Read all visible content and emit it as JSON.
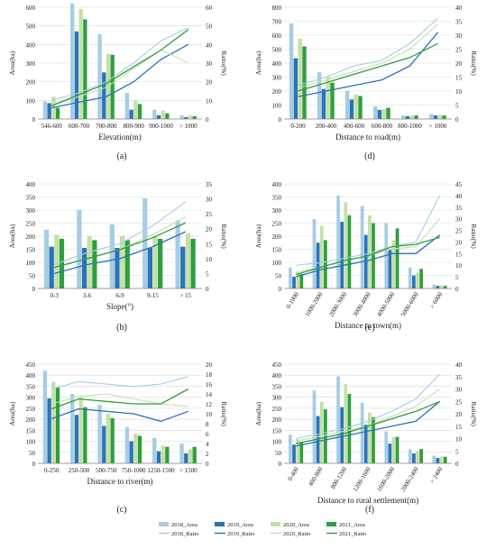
{
  "colors": {
    "area_2018": "#a6cde4",
    "area_2019": "#2a73b8",
    "area_2020": "#c5e0a8",
    "area_2021": "#2f9e3f",
    "ratio_2018": "#a6cde4",
    "ratio_2019": "#2a73b8",
    "ratio_2020": "#c5e0a8",
    "ratio_2021": "#2f9e3f",
    "grid": "#d9d9d9",
    "axis": "#888888"
  },
  "legend": {
    "items": [
      {
        "label": "2018_Area",
        "kind": "bar",
        "color": "#a6cde4"
      },
      {
        "label": "2019_Area",
        "kind": "bar",
        "color": "#2a73b8"
      },
      {
        "label": "2020_Area",
        "kind": "bar",
        "color": "#c5e0a8"
      },
      {
        "label": "2021_Area",
        "kind": "bar",
        "color": "#2f9e3f"
      },
      {
        "label": "2018_Ratio",
        "kind": "line",
        "color": "#a6cde4"
      },
      {
        "label": "2019_Ratio",
        "kind": "line",
        "color": "#2a73b8"
      },
      {
        "label": "2020_Ratio",
        "kind": "line",
        "color": "#c5e0a8"
      },
      {
        "label": "2021_Ratio",
        "kind": "line",
        "color": "#2f9e3f"
      }
    ]
  },
  "chart_data": [
    {
      "panel_label": "(a)",
      "type": "bar",
      "xlabel": "Elevation(m)",
      "ylabel": "Area(ha)",
      "y2label": "Ratio(%)",
      "ylim": [
        0,
        600
      ],
      "yticks": [
        0,
        100,
        200,
        300,
        400,
        500,
        600
      ],
      "y2lim": [
        0,
        60
      ],
      "y2ticks": [
        0,
        10,
        20,
        30,
        40,
        50,
        60
      ],
      "rotate_xlabels": false,
      "categories": [
        "546-600",
        "600-700",
        "700-800",
        "800-900",
        "900-1000",
        "> 1000"
      ],
      "series": [
        {
          "name": "2018_Area",
          "values": [
            95,
            620,
            455,
            140,
            50,
            20
          ]
        },
        {
          "name": "2019_Area",
          "values": [
            85,
            470,
            250,
            50,
            20,
            10
          ]
        },
        {
          "name": "2020_Area",
          "values": [
            120,
            590,
            350,
            100,
            45,
            20
          ]
        },
        {
          "name": "2021_Area",
          "values": [
            60,
            535,
            345,
            80,
            30,
            15
          ]
        }
      ],
      "lines": [
        {
          "name": "2018_Ratio",
          "values": [
            10,
            14,
            20,
            30,
            42,
            49
          ]
        },
        {
          "name": "2019_Ratio",
          "values": [
            6,
            9,
            12,
            20,
            32,
            40
          ]
        },
        {
          "name": "2020_Ratio",
          "values": [
            8,
            12,
            17,
            27,
            37,
            30
          ]
        },
        {
          "name": "2021_Ratio",
          "values": [
            7,
            13,
            19,
            28,
            37,
            48
          ]
        }
      ]
    },
    {
      "panel_label": "(d)",
      "type": "bar",
      "xlabel": "Distance to road(m)",
      "ylabel": "Area(ha)",
      "y2label": "Ratio(%)",
      "ylim": [
        0,
        800
      ],
      "yticks": [
        0,
        100,
        200,
        300,
        400,
        500,
        600,
        700,
        800
      ],
      "y2lim": [
        0,
        40
      ],
      "y2ticks": [
        0,
        5,
        10,
        15,
        20,
        25,
        30,
        35,
        40
      ],
      "rotate_xlabels": false,
      "categories": [
        "0-200",
        "200-400",
        "400-600",
        "600-800",
        "800-1000",
        "> 1000"
      ],
      "series": [
        {
          "name": "2018_Area",
          "values": [
            685,
            335,
            200,
            90,
            25,
            35
          ]
        },
        {
          "name": "2019_Area",
          "values": [
            435,
            215,
            140,
            65,
            20,
            25
          ]
        },
        {
          "name": "2020_Area",
          "values": [
            575,
            300,
            175,
            70,
            25,
            30
          ]
        },
        {
          "name": "2021_Area",
          "values": [
            520,
            260,
            165,
            80,
            25,
            25
          ]
        }
      ],
      "lines": [
        {
          "name": "2018_Ratio",
          "values": [
            12,
            15,
            19,
            21,
            27,
            36
          ]
        },
        {
          "name": "2019_Ratio",
          "values": [
            8,
            10,
            12,
            14,
            19,
            31
          ]
        },
        {
          "name": "2020_Ratio",
          "values": [
            11,
            14,
            17,
            20,
            25,
            34
          ]
        },
        {
          "name": "2021_Ratio",
          "values": [
            10,
            13,
            16,
            19,
            22,
            27
          ]
        }
      ]
    },
    {
      "panel_label": "(b)",
      "type": "bar",
      "xlabel": "Slope(°)",
      "ylabel": "Area(ha)",
      "y2label": "Ratio(%)",
      "ylim": [
        0,
        400
      ],
      "yticks": [
        0,
        50,
        100,
        150,
        200,
        250,
        300,
        350,
        400
      ],
      "y2lim": [
        0,
        35
      ],
      "y2ticks": [
        0,
        5,
        10,
        15,
        20,
        25,
        30,
        35
      ],
      "rotate_xlabels": false,
      "categories": [
        "0-3",
        "3-6",
        "6-9",
        "9-15",
        "> 15"
      ],
      "series": [
        {
          "name": "2018_Area",
          "values": [
            225,
            300,
            245,
            345,
            260
          ]
        },
        {
          "name": "2019_Area",
          "values": [
            160,
            155,
            155,
            155,
            160
          ]
        },
        {
          "name": "2020_Area",
          "values": [
            205,
            200,
            200,
            200,
            210
          ]
        },
        {
          "name": "2021_Area",
          "values": [
            190,
            185,
            185,
            190,
            190
          ]
        }
      ],
      "lines": [
        {
          "name": "2018_Ratio",
          "values": [
            8,
            12,
            15,
            21,
            29
          ]
        },
        {
          "name": "2019_Ratio",
          "values": [
            5,
            8,
            10,
            14,
            19
          ]
        },
        {
          "name": "2020_Ratio",
          "values": [
            7,
            10,
            13,
            18,
            24
          ]
        },
        {
          "name": "2021_Ratio",
          "values": [
            7,
            10,
            13,
            17,
            22
          ]
        }
      ]
    },
    {
      "panel_label": "(e)",
      "type": "bar",
      "xlabel": "Distance to town(m)",
      "ylabel": "Area(ha)",
      "y2label": "Ratio(%)",
      "ylim": [
        0,
        400
      ],
      "yticks": [
        0,
        50,
        100,
        150,
        200,
        250,
        300,
        350,
        400
      ],
      "y2lim": [
        0,
        45
      ],
      "y2ticks": [
        0,
        5,
        10,
        15,
        20,
        25,
        30,
        35,
        40,
        45
      ],
      "rotate_xlabels": true,
      "categories": [
        "0-1000",
        "1000-2000",
        "2000-3000",
        "3000-4000",
        "4000-5000",
        "5000-6000",
        "> 6000"
      ],
      "series": [
        {
          "name": "2018_Area",
          "values": [
            80,
            265,
            355,
            315,
            250,
            80,
            15
          ]
        },
        {
          "name": "2019_Area",
          "values": [
            45,
            175,
            255,
            205,
            150,
            50,
            10
          ]
        },
        {
          "name": "2020_Area",
          "values": [
            65,
            240,
            330,
            280,
            185,
            60,
            12
          ]
        },
        {
          "name": "2021_Area",
          "values": [
            55,
            185,
            280,
            250,
            230,
            75,
            10
          ]
        }
      ],
      "lines": [
        {
          "name": "2018_Ratio",
          "values": [
            10,
            11,
            13,
            15,
            18,
            20,
            40
          ]
        },
        {
          "name": "2019_Ratio",
          "values": [
            5,
            8,
            10,
            12,
            15,
            15,
            23
          ]
        },
        {
          "name": "2020_Ratio",
          "values": [
            7,
            9,
            12,
            14,
            17,
            18,
            30
          ]
        },
        {
          "name": "2021_Ratio",
          "values": [
            6,
            9,
            12,
            14,
            18,
            19,
            22
          ]
        }
      ]
    },
    {
      "panel_label": "(c)",
      "type": "bar",
      "xlabel": "Distance to river(m)",
      "ylabel": "Area(ha)",
      "y2label": "Ratio(%)",
      "ylim": [
        0,
        450
      ],
      "yticks": [
        0,
        50,
        100,
        150,
        200,
        250,
        300,
        350,
        400,
        450
      ],
      "y2lim": [
        0,
        20
      ],
      "y2ticks": [
        0,
        2,
        4,
        6,
        8,
        10,
        12,
        14,
        16,
        18,
        20
      ],
      "rotate_xlabels": false,
      "categories": [
        "0-250",
        "250-500",
        "500-750",
        "750-1000",
        "1250-1500",
        "> 1500"
      ],
      "series": [
        {
          "name": "2018_Area",
          "values": [
            420,
            315,
            265,
            165,
            115,
            90
          ]
        },
        {
          "name": "2019_Area",
          "values": [
            295,
            220,
            170,
            100,
            55,
            45
          ]
        },
        {
          "name": "2020_Area",
          "values": [
            370,
            300,
            225,
            135,
            80,
            65
          ]
        },
        {
          "name": "2021_Area",
          "values": [
            345,
            255,
            205,
            125,
            75,
            75
          ]
        }
      ],
      "lines": [
        {
          "name": "2018_Ratio",
          "values": [
            15,
            16.5,
            16,
            15.5,
            16,
            17.5
          ]
        },
        {
          "name": "2019_Ratio",
          "values": [
            9,
            11,
            10.5,
            10,
            8.5,
            10.5
          ]
        },
        {
          "name": "2020_Ratio",
          "values": [
            12,
            13.5,
            14,
            13,
            12,
            11.5
          ]
        },
        {
          "name": "2021_Ratio",
          "values": [
            11,
            13,
            12.5,
            12,
            12,
            15
          ]
        }
      ]
    },
    {
      "panel_label": "(f)",
      "type": "bar",
      "xlabel": "Distance to rural settlement(m)",
      "ylabel": "Area(ha)",
      "y2label": "Ratio(%)",
      "ylim": [
        0,
        450
      ],
      "yticks": [
        0,
        50,
        100,
        150,
        200,
        250,
        300,
        350,
        400,
        450
      ],
      "y2lim": [
        0,
        40
      ],
      "y2ticks": [
        0,
        5,
        10,
        15,
        20,
        25,
        30,
        35,
        40
      ],
      "rotate_xlabels": true,
      "categories": [
        "0-400",
        "400-800",
        "800-1200",
        "1200-1600",
        "1600-2000",
        "2000-2400",
        "> 2400"
      ],
      "series": [
        {
          "name": "2018_Area",
          "values": [
            130,
            330,
            395,
            275,
            145,
            65,
            35
          ]
        },
        {
          "name": "2019_Area",
          "values": [
            85,
            215,
            255,
            175,
            90,
            45,
            25
          ]
        },
        {
          "name": "2020_Area",
          "values": [
            110,
            280,
            360,
            230,
            120,
            55,
            30
          ]
        },
        {
          "name": "2021_Area",
          "values": [
            95,
            245,
            315,
            210,
            120,
            65,
            30
          ]
        }
      ],
      "lines": [
        {
          "name": "2018_Ratio",
          "values": [
            10,
            12,
            14,
            17,
            21,
            26,
            36
          ]
        },
        {
          "name": "2019_Ratio",
          "values": [
            7,
            9,
            11,
            13,
            15,
            17,
            25
          ]
        },
        {
          "name": "2020_Ratio",
          "values": [
            9,
            11,
            13,
            15,
            19,
            23,
            30
          ]
        },
        {
          "name": "2021_Ratio",
          "values": [
            8,
            10,
            12,
            15,
            18,
            21,
            25
          ]
        }
      ]
    }
  ]
}
